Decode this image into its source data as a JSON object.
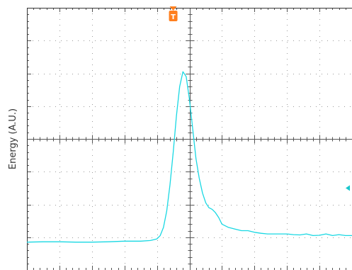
{
  "chart_data": {
    "type": "line",
    "title": "",
    "xlabel": "",
    "ylabel": "Energy (A.U.)",
    "grid": true,
    "xlim": [
      0,
      10
    ],
    "ylim": [
      0,
      8
    ],
    "trigger_marker": {
      "label": "T",
      "x": 4.5,
      "color": "#ff7f1e"
    },
    "level_marker": {
      "y": 2.5,
      "color": "#19c6cc"
    },
    "series": [
      {
        "color": "#19d8e3",
        "x": [
          0,
          0.5,
          1,
          1.5,
          2,
          2.5,
          3,
          3.5,
          3.8,
          4.0,
          4.1,
          4.2,
          4.3,
          4.4,
          4.5,
          4.6,
          4.7,
          4.8,
          4.9,
          5.0,
          5.1,
          5.2,
          5.3,
          5.4,
          5.5,
          5.6,
          5.7,
          5.8,
          5.9,
          6.0,
          6.2,
          6.4,
          6.6,
          6.8,
          7.0,
          7.2,
          7.4,
          7.6,
          7.8,
          8.0,
          8.2,
          8.4,
          8.6,
          8.8,
          9.0,
          9.2,
          9.4,
          9.6,
          9.8,
          10.0
        ],
        "y": [
          0.85,
          0.86,
          0.86,
          0.85,
          0.85,
          0.86,
          0.88,
          0.88,
          0.9,
          0.95,
          1.05,
          1.3,
          1.8,
          2.6,
          3.6,
          4.7,
          5.6,
          6.05,
          5.9,
          5.2,
          4.3,
          3.4,
          2.8,
          2.35,
          2.05,
          1.9,
          1.85,
          1.75,
          1.6,
          1.4,
          1.3,
          1.25,
          1.2,
          1.2,
          1.15,
          1.12,
          1.1,
          1.1,
          1.1,
          1.1,
          1.08,
          1.07,
          1.1,
          1.05,
          1.06,
          1.1,
          1.05,
          1.08,
          1.05,
          1.05
        ]
      }
    ]
  }
}
